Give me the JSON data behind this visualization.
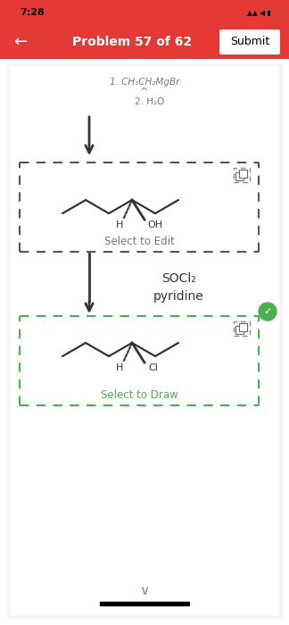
{
  "bg_color": "#f2f2f2",
  "header_color": "#e53935",
  "header_text": "Problem 57 of 62",
  "header_time": "7:28",
  "submit_btn": "Submit",
  "step1_text": "1. CH₃CH₂MgBr",
  "step2_text": "2. H₂O",
  "reagent1": "SOCl₂",
  "reagent2": "pyridine",
  "box1_label": "Select to Edit",
  "box2_label": "Select to Draw",
  "box1_border": "#555555",
  "box2_border": "#4caf50",
  "box2_label_color": "#4caf50",
  "arrow_color": "#333333",
  "molecule_color": "#333333",
  "check_color": "#4caf50",
  "nav_text_color": "#ffffff"
}
